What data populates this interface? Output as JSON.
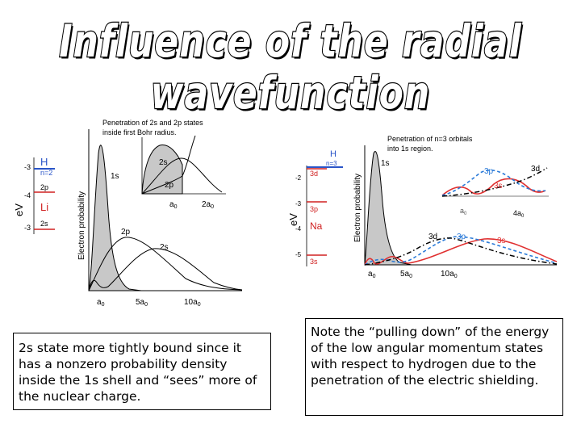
{
  "title": "Influence of the radial wavefunction",
  "left_figure": {
    "inset_caption_line1": "Penetration of 2s and 2p states",
    "inset_caption_line2": "inside first Bohr radius.",
    "energy_axis_label": "eV",
    "yaxis_label": "Electron probability",
    "h_label": "H",
    "n2_label": "n=2",
    "li_label": "Li",
    "level_2p": "2p",
    "level_2s": "2s",
    "tick_m3a": "-3",
    "tick_m4": "-4",
    "tick_m3b": "-3",
    "curve_1s": "1s",
    "curve_2p": "2p",
    "curve_2s": "2s",
    "inset_2s": "2s",
    "inset_2p": "2p",
    "inset_a0": "a",
    "inset_2a0": "2a",
    "x_a0": "a",
    "x_5a0": "5a",
    "x_10a0": "10a",
    "subscript": "0"
  },
  "right_figure": {
    "inset_caption_line1": "Penetration of n=3 orbitals",
    "inset_caption_line2": "into 1s region.",
    "energy_axis_label": "eV",
    "yaxis_label": "Electron probability",
    "h_label": "H",
    "n3_label": "n=3",
    "na_label": "Na",
    "level_3d": "3d",
    "level_3p": "3p",
    "level_3s": "3s",
    "tick_m2": "-2",
    "tick_m3": "-3",
    "tick_m4": "-4",
    "tick_m5": "-5",
    "curve_1s": "1s",
    "curve_3d": "3d",
    "curve_3p": "3p",
    "curve_3s": "3s",
    "inset_3p": "3p",
    "inset_3d": "3d",
    "inset_3s": "3s",
    "inset_a0": "a",
    "inset_4a0": "4a",
    "x_a0": "a",
    "x_5a0": "5a",
    "x_10a0": "10a",
    "subscript": "0",
    "colors": {
      "3s": "#e03030",
      "3p": "#2a7ad8",
      "3d": "#000000"
    }
  },
  "captions": {
    "left": "2s state more tightly bound since it has a nonzero probability density inside the 1s shell and “sees” more of the nuclear charge.",
    "right": "Note the “pulling down” of the energy of the low angular momentum states with respect to hydrogen due to the penetration of the electric shielding."
  }
}
